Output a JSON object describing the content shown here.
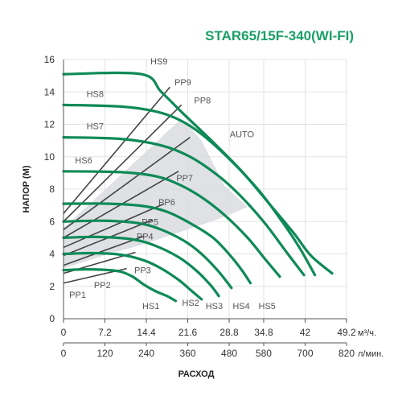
{
  "title": "STAR65/15F-340(WI-FI)",
  "chart_data": {
    "type": "line",
    "title": "STAR65/15F-340(WI-FI)",
    "ylabel": "НАПОР (М)",
    "xlabel": "РАСХОД",
    "x_unit_m3": "м³/ч.",
    "x_unit_lmin": "л/мин.",
    "xlim": [
      0,
      49.2
    ],
    "ylim": [
      0,
      16
    ],
    "y_ticks": [
      "0",
      "2",
      "4",
      "6",
      "8",
      "10",
      "12",
      "14",
      "16"
    ],
    "x_ticks_m3": [
      {
        "value": 0,
        "label": "0"
      },
      {
        "value": 7.2,
        "label": "7.2"
      },
      {
        "value": 14.4,
        "label": "14.4"
      },
      {
        "value": 21.6,
        "label": "21.6"
      },
      {
        "value": 28.8,
        "label": "28.8"
      },
      {
        "value": 34.8,
        "label": "34.8"
      },
      {
        "value": 42,
        "label": "42"
      },
      {
        "value": 49.2,
        "label": "49.2"
      }
    ],
    "x_ticks_lmin": [
      {
        "value": 0,
        "label": "0"
      },
      {
        "value": 7.2,
        "label": "120"
      },
      {
        "value": 14.4,
        "label": "240"
      },
      {
        "value": 21.6,
        "label": "360"
      },
      {
        "value": 28.8,
        "label": "480"
      },
      {
        "value": 34.8,
        "label": "580"
      },
      {
        "value": 42,
        "label": "700"
      },
      {
        "value": 49.2,
        "label": "820"
      }
    ],
    "grid": true,
    "colors": {
      "hs": "#0e8a57",
      "pp": "#444444",
      "auto_band": "#d9dcdf",
      "title": "#1aa067"
    },
    "auto_band": {
      "name": "AUTO",
      "points": [
        [
          0,
          3.1
        ],
        [
          0,
          5.6
        ],
        [
          7,
          7.9
        ],
        [
          14,
          10.2
        ],
        [
          20,
          12.2
        ],
        [
          22,
          11.8
        ],
        [
          24,
          11.0
        ],
        [
          28,
          8.2
        ],
        [
          32,
          6.9
        ],
        [
          28,
          6.3
        ],
        [
          24,
          5.8
        ],
        [
          14,
          4.6
        ],
        [
          7,
          3.9
        ]
      ]
    },
    "hs_series": [
      {
        "name": "HS1",
        "points": [
          [
            0,
            3.0
          ],
          [
            4,
            3.05
          ],
          [
            8,
            3.0
          ],
          [
            10,
            2.9
          ],
          [
            12,
            2.6
          ],
          [
            14,
            2.1
          ],
          [
            16,
            1.7
          ],
          [
            18,
            1.4
          ],
          [
            19.5,
            1.1
          ]
        ]
      },
      {
        "name": "HS2",
        "points": [
          [
            0,
            4.0
          ],
          [
            5,
            4.05
          ],
          [
            10,
            3.95
          ],
          [
            14,
            3.6
          ],
          [
            17,
            3.1
          ],
          [
            20,
            2.4
          ],
          [
            22,
            1.8
          ],
          [
            24,
            1.2
          ]
        ]
      },
      {
        "name": "HS3",
        "points": [
          [
            0,
            5.0
          ],
          [
            6,
            5.05
          ],
          [
            12,
            4.9
          ],
          [
            16,
            4.5
          ],
          [
            20,
            3.8
          ],
          [
            23,
            3.0
          ],
          [
            25.5,
            2.1
          ],
          [
            27,
            1.4
          ]
        ]
      },
      {
        "name": "HS4",
        "points": [
          [
            0,
            6.0
          ],
          [
            7,
            6.05
          ],
          [
            13,
            5.9
          ],
          [
            17,
            5.5
          ],
          [
            21,
            4.8
          ],
          [
            24,
            4.0
          ],
          [
            27,
            2.9
          ],
          [
            29.2,
            1.9
          ]
        ]
      },
      {
        "name": "HS5",
        "points": [
          [
            0,
            7.1
          ],
          [
            8,
            7.1
          ],
          [
            14,
            6.95
          ],
          [
            18,
            6.6
          ],
          [
            22,
            5.9
          ],
          [
            26,
            5.0
          ],
          [
            29,
            3.9
          ],
          [
            31,
            3.0
          ],
          [
            32.5,
            2.2
          ]
        ]
      },
      {
        "name": "HS6",
        "points": [
          [
            0,
            9.1
          ],
          [
            10,
            9.05
          ],
          [
            16,
            8.8
          ],
          [
            20,
            8.3
          ],
          [
            24,
            7.5
          ],
          [
            28,
            6.4
          ],
          [
            32,
            5.0
          ],
          [
            35,
            3.7
          ],
          [
            37.6,
            2.6
          ]
        ]
      },
      {
        "name": "HS7",
        "points": [
          [
            0,
            11.2
          ],
          [
            10,
            11.1
          ],
          [
            17,
            10.7
          ],
          [
            22,
            10.0
          ],
          [
            27,
            8.8
          ],
          [
            31,
            7.5
          ],
          [
            35,
            5.9
          ],
          [
            39,
            4.0
          ],
          [
            41.8,
            2.7
          ]
        ]
      },
      {
        "name": "HS8",
        "points": [
          [
            0,
            13.2
          ],
          [
            10,
            13.1
          ],
          [
            16,
            12.8
          ],
          [
            20,
            12.3
          ],
          [
            24,
            11.4
          ],
          [
            29,
            9.8
          ],
          [
            34,
            7.9
          ],
          [
            38,
            6.0
          ],
          [
            41,
            4.4
          ],
          [
            43.7,
            2.7
          ]
        ]
      },
      {
        "name": "HS9",
        "points": [
          [
            0,
            15.1
          ],
          [
            13.5,
            15.1
          ],
          [
            17,
            14.0
          ],
          [
            21,
            12.6
          ],
          [
            26,
            10.9
          ],
          [
            31,
            9.1
          ],
          [
            36,
            7.0
          ],
          [
            40,
            5.3
          ],
          [
            43,
            3.9
          ],
          [
            46.7,
            2.8
          ]
        ]
      }
    ],
    "pp_series": [
      {
        "name": "PP1",
        "points": [
          [
            0,
            2.2
          ],
          [
            11,
            3.1
          ]
        ]
      },
      {
        "name": "PP2",
        "points": [
          [
            0,
            2.8
          ],
          [
            12.5,
            4.1
          ]
        ]
      },
      {
        "name": "PP3",
        "points": [
          [
            0,
            3.3
          ],
          [
            14,
            5.1
          ]
        ]
      },
      {
        "name": "PP4",
        "points": [
          [
            0,
            3.9
          ],
          [
            15.5,
            6.1
          ]
        ]
      },
      {
        "name": "PP5",
        "points": [
          [
            0,
            4.4
          ],
          [
            17.5,
            7.1
          ]
        ]
      },
      {
        "name": "PP6",
        "points": [
          [
            0,
            5.0
          ],
          [
            20,
            9.1
          ]
        ]
      },
      {
        "name": "PP7",
        "points": [
          [
            0,
            5.5
          ],
          [
            22,
            11.2
          ]
        ]
      },
      {
        "name": "PP8",
        "points": [
          [
            0,
            6.0
          ],
          [
            20.5,
            13.2
          ]
        ]
      },
      {
        "name": "PP9",
        "points": [
          [
            0,
            6.5
          ],
          [
            18.5,
            14.3
          ]
        ]
      }
    ],
    "labels": [
      {
        "text": "HS9",
        "x": 15.1,
        "y": 15.7
      },
      {
        "text": "HS8",
        "x": 4.0,
        "y": 13.7
      },
      {
        "text": "HS7",
        "x": 4.0,
        "y": 11.7
      },
      {
        "text": "HS6",
        "x": 2.0,
        "y": 9.6
      },
      {
        "text": "PP9",
        "x": 19.3,
        "y": 14.4
      },
      {
        "text": "PP8",
        "x": 22.7,
        "y": 13.3
      },
      {
        "text": "AUTO",
        "x": 28.9,
        "y": 11.2
      },
      {
        "text": "PP7",
        "x": 19.6,
        "y": 8.5
      },
      {
        "text": "PP6",
        "x": 16.5,
        "y": 7.0
      },
      {
        "text": "PP5",
        "x": 13.6,
        "y": 5.8
      },
      {
        "text": "PP4",
        "x": 12.7,
        "y": 4.9
      },
      {
        "text": "PP3",
        "x": 12.3,
        "y": 2.8
      },
      {
        "text": "PP2",
        "x": 5.3,
        "y": 1.9
      },
      {
        "text": "PP1",
        "x": 1.0,
        "y": 1.3
      },
      {
        "text": "HS1",
        "x": 13.7,
        "y": 0.6
      },
      {
        "text": "HS2",
        "x": 20.6,
        "y": 0.8
      },
      {
        "text": "HS3",
        "x": 24.7,
        "y": 0.6
      },
      {
        "text": "HS4",
        "x": 29.4,
        "y": 0.6
      },
      {
        "text": "HS5",
        "x": 33.9,
        "y": 0.6
      }
    ]
  }
}
